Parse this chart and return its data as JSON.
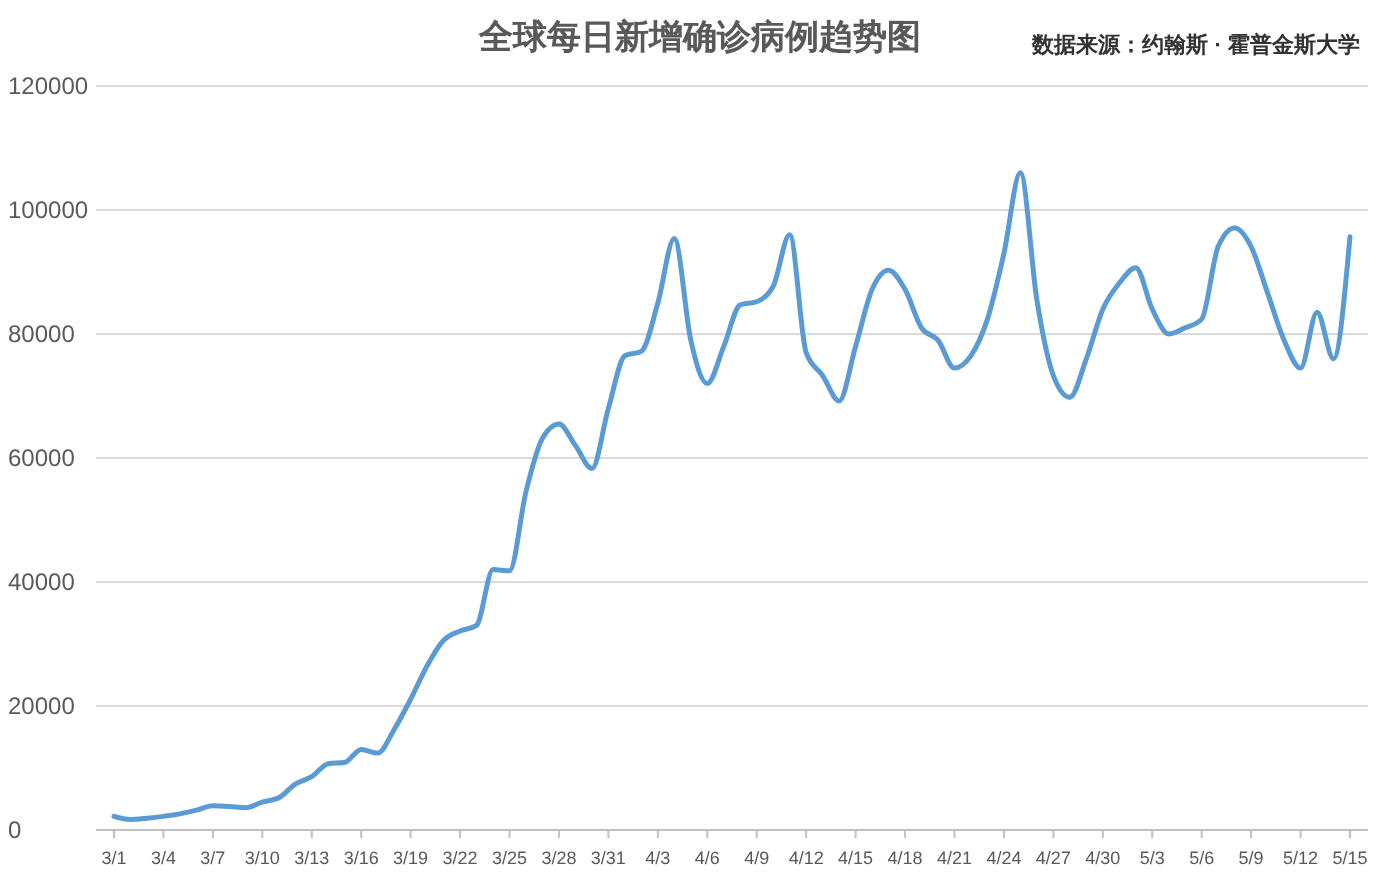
{
  "chart_data": {
    "type": "line",
    "title": "全球每日新增确诊病例趋势图",
    "annotations": [
      "数据来源：约翰斯 · 霍普金斯大学"
    ],
    "categories": [
      "3/1",
      null,
      null,
      "3/4",
      null,
      null,
      "3/7",
      null,
      null,
      "3/10",
      null,
      null,
      "3/13",
      null,
      null,
      "3/16",
      null,
      null,
      "3/19",
      null,
      null,
      "3/22",
      null,
      null,
      "3/25",
      null,
      null,
      "3/28",
      null,
      null,
      "3/31",
      null,
      null,
      "4/3",
      null,
      null,
      "4/6",
      null,
      null,
      "4/9",
      null,
      null,
      "4/12",
      null,
      null,
      "4/15",
      null,
      null,
      "4/18",
      null,
      null,
      "4/21",
      null,
      null,
      "4/24",
      null,
      null,
      "4/27",
      null,
      null,
      "4/30",
      null,
      null,
      "5/3",
      null,
      null,
      "5/6",
      null,
      null,
      "5/9",
      null,
      null,
      "5/12",
      null,
      null,
      "5/15"
    ],
    "series": [
      {
        "color": "#5b9bd5",
        "values": [
          2200,
          1700,
          1900,
          2200,
          2600,
          3200,
          3900,
          3800,
          3600,
          4500,
          5200,
          7400,
          8600,
          10700,
          10900,
          13000,
          12400,
          16200,
          21100,
          26500,
          30600,
          32100,
          33000,
          42000,
          41800,
          54600,
          63200,
          65500,
          62000,
          58300,
          68000,
          76500,
          77200,
          85000,
          95400,
          79000,
          72000,
          78000,
          84700,
          85200,
          87700,
          96000,
          77000,
          73300,
          69200,
          78000,
          87200,
          90300,
          87200,
          81000,
          79000,
          74500,
          76500,
          82400,
          93000,
          106000,
          85500,
          73300,
          69800,
          76000,
          84000,
          88200,
          90700,
          84000,
          80000,
          81000,
          82400,
          94100,
          97100,
          94100,
          86600,
          79000,
          74500,
          83500,
          76000,
          95700
        ]
      }
    ],
    "ylim": [
      0,
      120000
    ],
    "yticks": [
      0,
      20000,
      40000,
      60000,
      80000,
      100000,
      120000
    ],
    "grid": "y"
  }
}
